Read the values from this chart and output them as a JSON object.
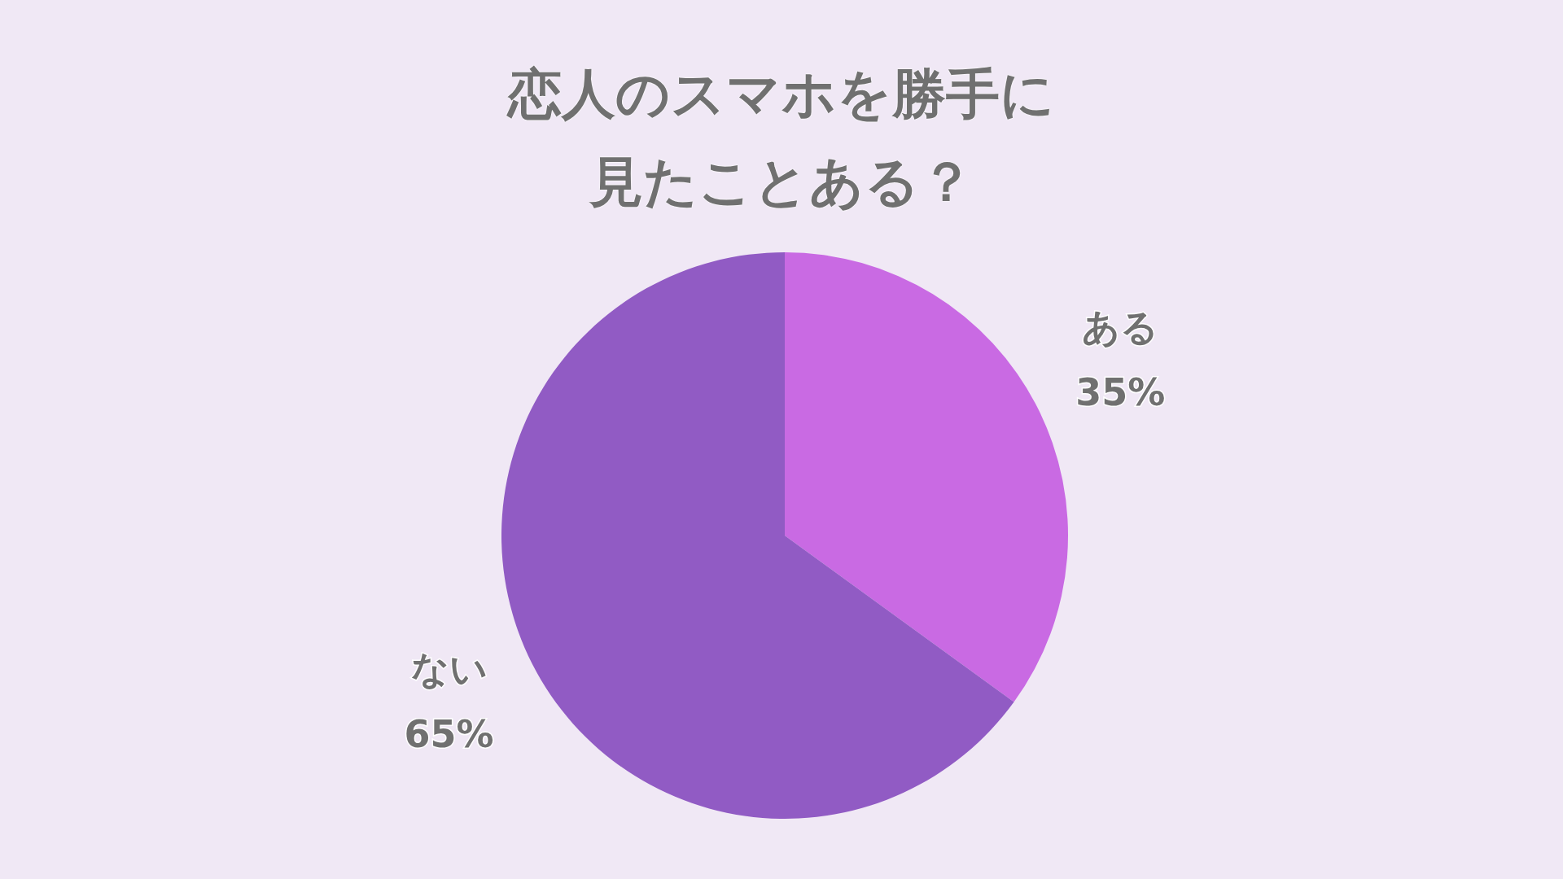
{
  "chart_data": {
    "type": "pie",
    "title": "恋人のスマホを勝手に見たことある？",
    "categories": [
      "ある",
      "ない"
    ],
    "values": [
      35,
      65
    ],
    "colors": [
      "#c96ae3",
      "#915bc4"
    ],
    "value_labels": [
      "35%",
      "65%"
    ],
    "legend": false
  }
}
